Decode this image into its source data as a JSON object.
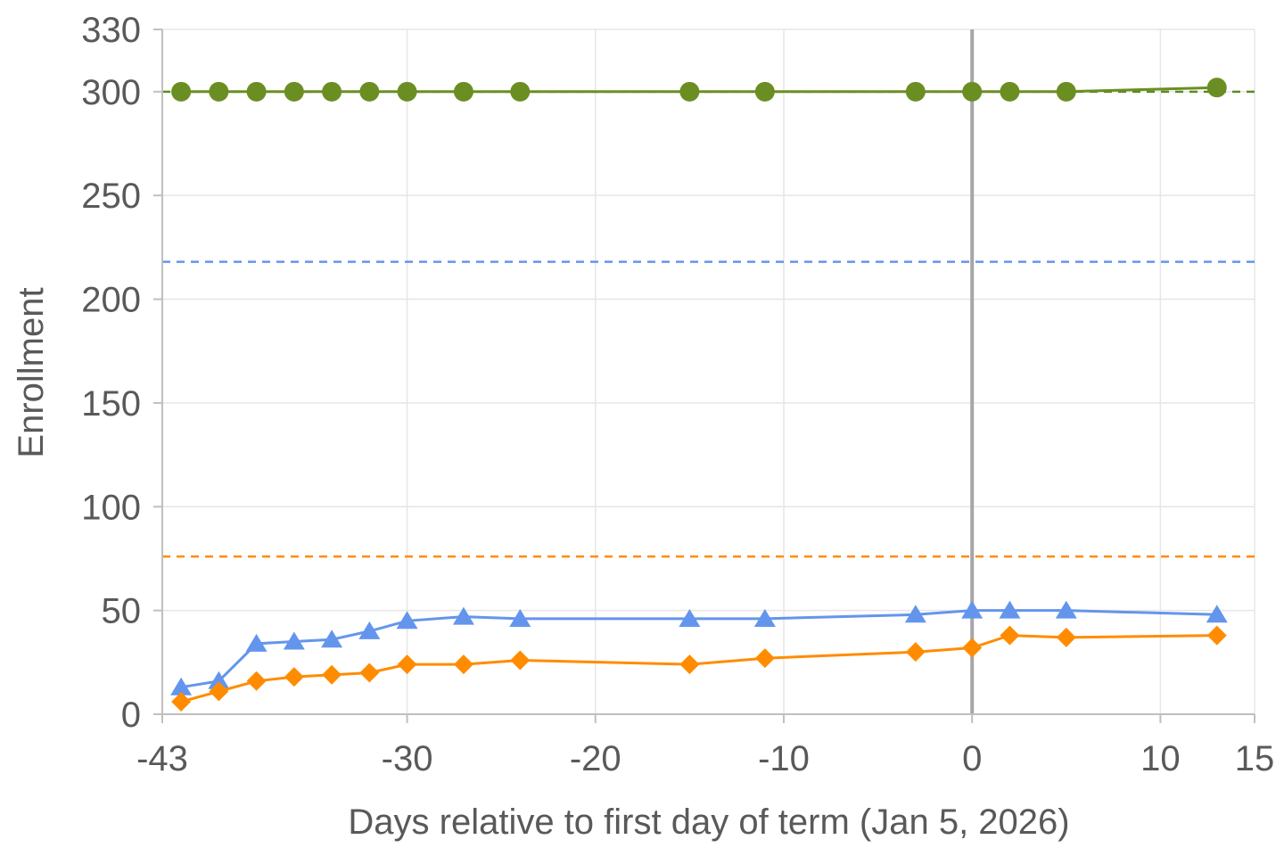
{
  "chart_data": {
    "type": "line",
    "title": "",
    "xlabel": "Days relative to first day of term (Jan 5, 2026)",
    "ylabel": "Enrollment",
    "xlim": [
      -43,
      15
    ],
    "ylim": [
      0,
      330
    ],
    "xticks": [
      -43,
      -30,
      -20,
      -10,
      0,
      10,
      15
    ],
    "yticks": [
      0,
      50,
      100,
      150,
      200,
      250,
      300,
      330
    ],
    "grid": true,
    "legend": "none",
    "reference_vline": {
      "x": 0,
      "color": "#a6a6a6"
    },
    "reference_hlines": [
      {
        "y": 300,
        "color": "#5b8c1e",
        "style": "dashed"
      },
      {
        "y": 218,
        "color": "#6495ed",
        "style": "dashed"
      },
      {
        "y": 76,
        "color": "#ff8c00",
        "style": "dashed"
      }
    ],
    "series": [
      {
        "color": "#6b8e23",
        "marker": "circle",
        "x": [
          -42,
          -40,
          -38,
          -36,
          -34,
          -32,
          -30,
          -27,
          -24,
          -15,
          -11,
          -3,
          0,
          2,
          5,
          13
        ],
        "y": [
          300,
          300,
          300,
          300,
          300,
          300,
          300,
          300,
          300,
          300,
          300,
          300,
          300,
          300,
          300,
          302
        ]
      },
      {
        "color": "#6495ed",
        "marker": "triangle",
        "x": [
          -42,
          -40,
          -38,
          -36,
          -34,
          -32,
          -30,
          -27,
          -24,
          -15,
          -11,
          -3,
          0,
          2,
          5,
          13
        ],
        "y": [
          13,
          16,
          34,
          35,
          36,
          40,
          45,
          47,
          46,
          46,
          46,
          48,
          50,
          50,
          50,
          48
        ]
      },
      {
        "color": "#ff8c00",
        "marker": "diamond",
        "x": [
          -42,
          -40,
          -38,
          -36,
          -34,
          -32,
          -30,
          -27,
          -24,
          -15,
          -11,
          -3,
          0,
          2,
          5,
          13
        ],
        "y": [
          6,
          11,
          16,
          18,
          19,
          20,
          24,
          24,
          26,
          24,
          27,
          30,
          32,
          38,
          37,
          38
        ]
      }
    ]
  }
}
